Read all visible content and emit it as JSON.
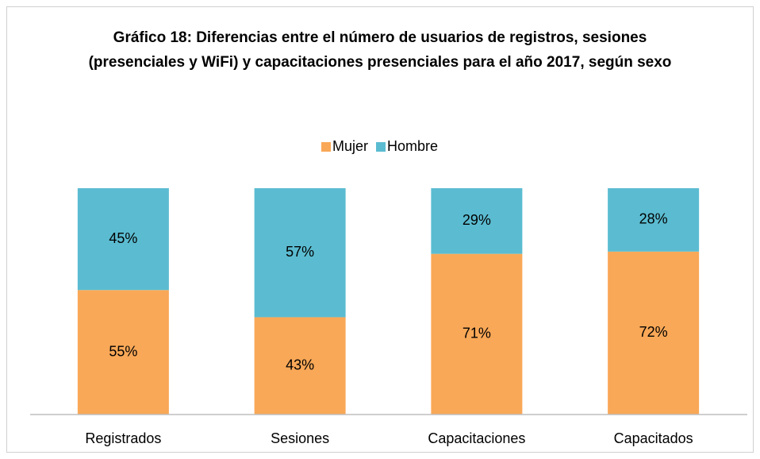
{
  "chart_data": {
    "type": "stacked_bar",
    "title": "Gráfico 18: Diferencias entre el número de usuarios de registros, sesiones (presenciales y WiFi) y capacitaciones presenciales para el año 2017, según sexo",
    "categories": [
      "Registrados",
      "Sesiones",
      "Capacitaciones",
      "Capacitados"
    ],
    "series": [
      {
        "name": "Mujer",
        "color": "#f9a857",
        "values": [
          55,
          43,
          71,
          72
        ],
        "value_labels": [
          "55%",
          "43%",
          "71%",
          "72%"
        ]
      },
      {
        "name": "Hombre",
        "color": "#5bbcd1",
        "values": [
          45,
          57,
          29,
          28
        ],
        "value_labels": [
          "45%",
          "57%",
          "29%",
          "28%"
        ]
      }
    ],
    "ylim": [
      0,
      100
    ],
    "legend": "top"
  }
}
